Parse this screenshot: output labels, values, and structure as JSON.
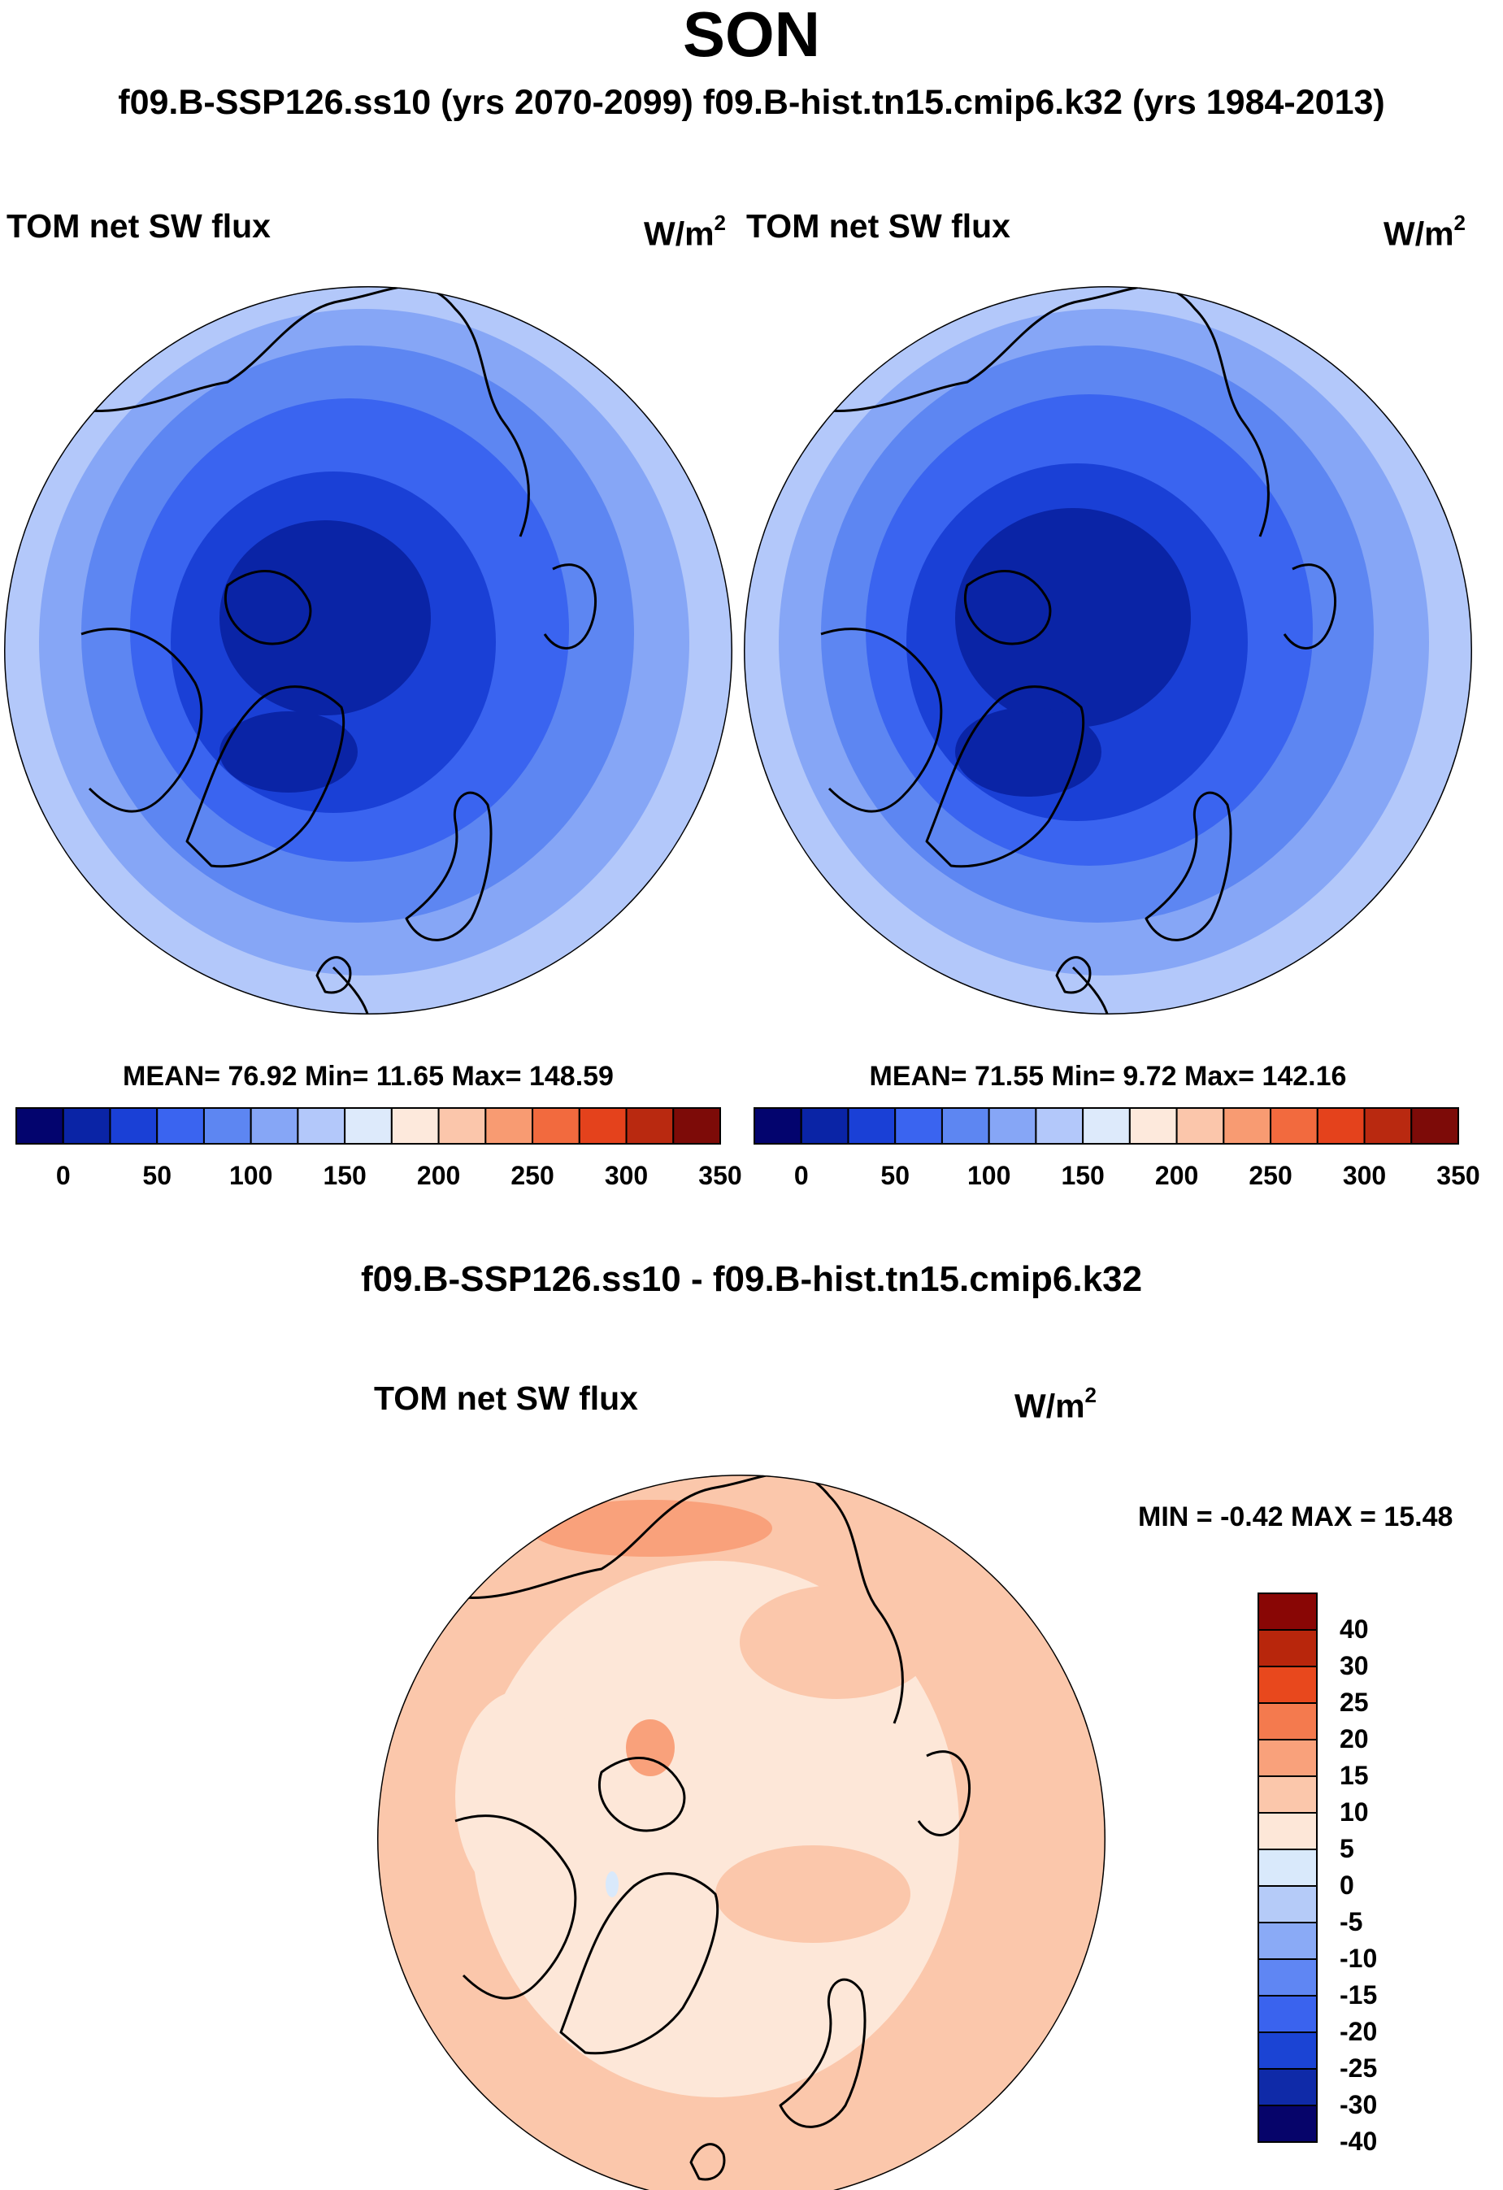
{
  "figure": {
    "title": "SON",
    "subtitle": "f09.B-SSP126.ss10 (yrs 2070-2099)  f09.B-hist.tn15.cmip6.k32 (yrs 1984-2013)",
    "difference_title": "f09.B-SSP126.ss10 - f09.B-hist.tn15.cmip6.k32"
  },
  "panels": {
    "left": {
      "title": "TOM net SW flux",
      "unit": "W/m",
      "unit_sup": "2",
      "stats": {
        "mean_label": "MEAN=",
        "mean": "76.92",
        "min_label": "Min=",
        "min": "11.65",
        "max_label": "Max=",
        "max": "148.59"
      }
    },
    "right": {
      "title": "TOM net SW flux",
      "unit": "W/m",
      "unit_sup": "2",
      "stats": {
        "mean_label": "MEAN=",
        "mean": "71.55",
        "min_label": "Min=",
        "min": "9.72",
        "max_label": "Max=",
        "max": "142.16"
      }
    },
    "diff": {
      "title": "TOM net SW flux",
      "unit": "W/m",
      "unit_sup": "2",
      "minmax": {
        "min_label": "MIN =",
        "min": "-0.42",
        "max_label": "MAX =",
        "max": "15.48"
      }
    }
  },
  "colorbar_abs": {
    "colors": [
      "#03046e",
      "#0a24a6",
      "#1a40d6",
      "#3a64f0",
      "#5d86f2",
      "#86a6f6",
      "#b3c8fa",
      "#ddeafb",
      "#fde9dc",
      "#fbc6ab",
      "#f89b72",
      "#f26a3e",
      "#e4421c",
      "#b92910",
      "#7d0b08"
    ],
    "tick_labels": [
      "0",
      "50",
      "100",
      "150",
      "200",
      "250",
      "300",
      "350"
    ]
  },
  "colorbar_diff": {
    "colors": [
      "#06046a",
      "#0f2aa8",
      "#1b44d4",
      "#3a63ee",
      "#5f86f3",
      "#8aaaf6",
      "#b5cbf8",
      "#d9e9fb",
      "#fde7d8",
      "#fbc7ab",
      "#f9a17b",
      "#f47a4e",
      "#e8481d",
      "#b8260c",
      "#890605"
    ],
    "labels": [
      "40",
      "30",
      "25",
      "20",
      "15",
      "10",
      "5",
      "0",
      "-5",
      "-10",
      "-15",
      "-20",
      "-25",
      "-30",
      "-40"
    ]
  },
  "chart_data": [
    {
      "type": "map",
      "projection": "north polar stereographic",
      "title": "TOM net SW flux",
      "units": "W/m^2",
      "dataset": "f09.B-SSP126.ss10 (yrs 2070-2099)",
      "season": "SON",
      "mean": 76.92,
      "min": 11.65,
      "max": 148.59,
      "contour_levels": [
        0,
        25,
        50,
        75,
        100,
        125,
        150,
        175,
        200,
        225,
        250,
        275,
        300,
        325,
        350
      ]
    },
    {
      "type": "map",
      "projection": "north polar stereographic",
      "title": "TOM net SW flux",
      "units": "W/m^2",
      "dataset": "f09.B-hist.tn15.cmip6.k32 (yrs 1984-2013)",
      "season": "SON",
      "mean": 71.55,
      "min": 9.72,
      "max": 142.16,
      "contour_levels": [
        0,
        25,
        50,
        75,
        100,
        125,
        150,
        175,
        200,
        225,
        250,
        275,
        300,
        325,
        350
      ]
    },
    {
      "type": "map",
      "projection": "north polar stereographic",
      "title": "TOM net SW flux",
      "units": "W/m^2",
      "dataset": "f09.B-SSP126.ss10 - f09.B-hist.tn15.cmip6.k32",
      "season": "SON",
      "min": -0.42,
      "max": 15.48,
      "contour_levels": [
        -40,
        -30,
        -25,
        -20,
        -15,
        -10,
        -5,
        0,
        5,
        10,
        15,
        20,
        25,
        30,
        40
      ]
    }
  ]
}
